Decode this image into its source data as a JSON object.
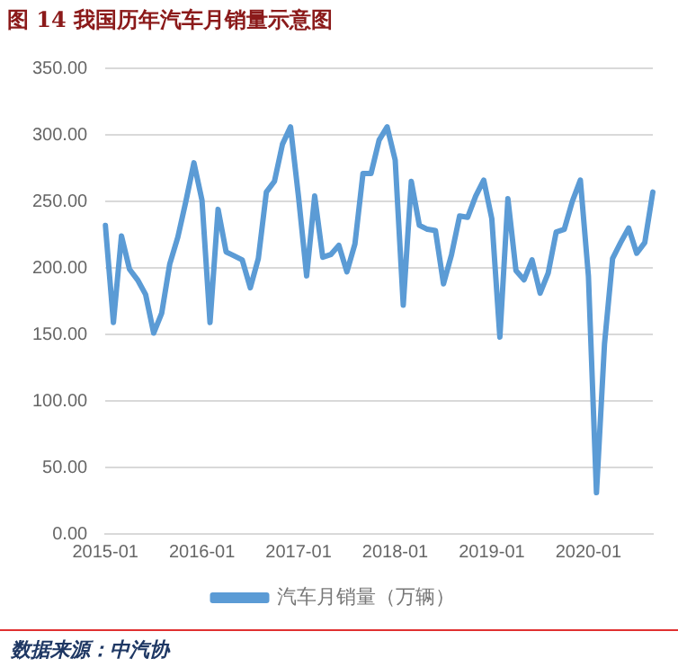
{
  "chart_data": {
    "type": "line",
    "title": "图 14 我国历年汽车月销量示意图",
    "categories": [
      "2015-01",
      null,
      null,
      null,
      null,
      null,
      null,
      null,
      null,
      null,
      null,
      null,
      "2016-01",
      null,
      null,
      null,
      null,
      null,
      null,
      null,
      null,
      null,
      null,
      null,
      "2017-01",
      null,
      null,
      null,
      null,
      null,
      null,
      null,
      null,
      null,
      null,
      null,
      "2018-01",
      null,
      null,
      null,
      null,
      null,
      null,
      null,
      null,
      null,
      null,
      null,
      "2019-01",
      null,
      null,
      null,
      null,
      null,
      null,
      null,
      null,
      null,
      null,
      null,
      "2020-01",
      null,
      null,
      null,
      null,
      null,
      null,
      null,
      null
    ],
    "series": [
      {
        "name": "汽车月销量（万辆）",
        "color": "#5b9bd5",
        "values": [
          232,
          159,
          224,
          199,
          191,
          180,
          151,
          166,
          203,
          223,
          250,
          279,
          251,
          159,
          244,
          212,
          209,
          206,
          185,
          207,
          257,
          265,
          293,
          306,
          253,
          194,
          254,
          208,
          210,
          217,
          197,
          218,
          271,
          271,
          296,
          306,
          281,
          172,
          265,
          232,
          229,
          228,
          188,
          210,
          239,
          238,
          254,
          266,
          237,
          148,
          252,
          198,
          191,
          206,
          181,
          196,
          227,
          229,
          250,
          266,
          194,
          31,
          143,
          207,
          219,
          230,
          211,
          219,
          257
        ]
      }
    ],
    "ylim": [
      0,
      350
    ],
    "yticks": [
      {
        "value": 0,
        "label": "0.00"
      },
      {
        "value": 50,
        "label": "50.00"
      },
      {
        "value": 100,
        "label": "100.00"
      },
      {
        "value": 150,
        "label": "150.00"
      },
      {
        "value": 200,
        "label": "200.00"
      },
      {
        "value": 250,
        "label": "250.00"
      },
      {
        "value": 300,
        "label": "300.00"
      },
      {
        "value": 350,
        "label": "350.00"
      }
    ],
    "grid": "y",
    "legend": "bottom",
    "marker": "none",
    "line_style": "solid",
    "annotations": [
      "数据来源：中汽协"
    ]
  }
}
